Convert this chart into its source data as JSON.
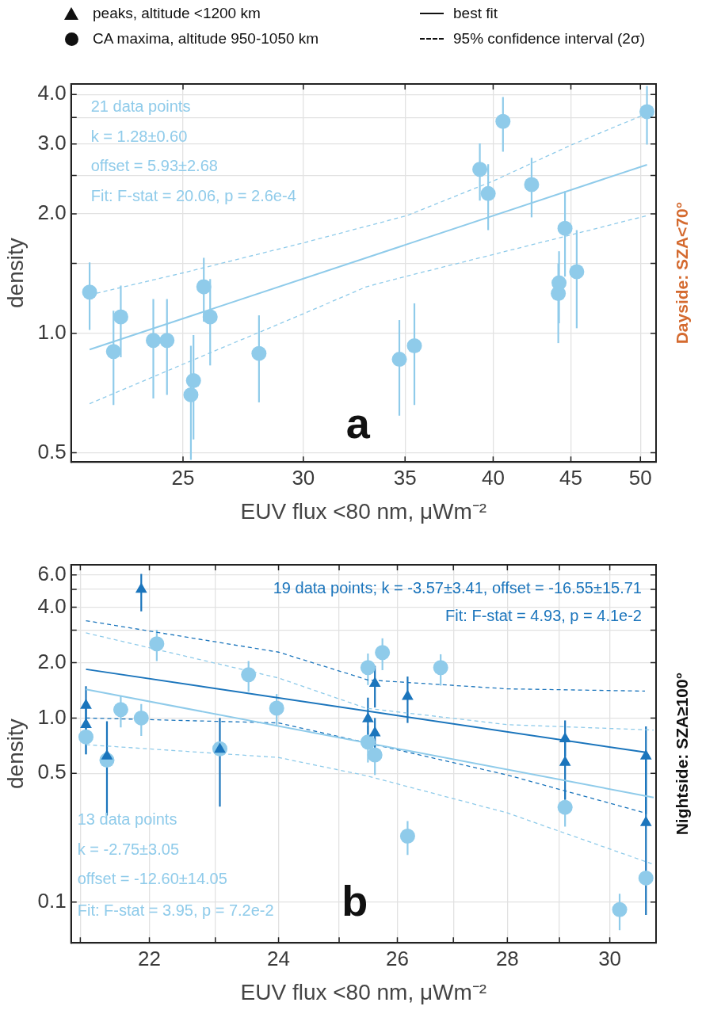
{
  "chart_data": [
    {
      "type": "other",
      "annotations": [
        "peaks, altitude <1200 km",
        "CA maxima, altitude 950-1050 km",
        "best fit",
        "95% confidence interval (2σ)"
      ]
    },
    {
      "type": "scatter",
      "log": "xy",
      "grid": true,
      "xlabel": "EUV flux <80 nm, μWm⁻²",
      "ylabel": "density",
      "y2label": "Dayside: SZA<70°",
      "xlim": [
        21.1,
        51.2
      ],
      "ylim": [
        0.474,
        4.25
      ],
      "xticks": [
        25,
        30,
        35,
        40,
        45,
        50
      ],
      "yticks": [
        {
          "value": 0.5,
          "label": "0.5"
        },
        {
          "value": 1,
          "label": "1.0"
        },
        {
          "value": 1.5,
          "label": null
        },
        {
          "value": 2,
          "label": "2.0"
        },
        {
          "value": 2.5,
          "label": null
        },
        {
          "value": 3,
          "label": "3.0"
        },
        {
          "value": 3.5,
          "label": null
        },
        {
          "value": 4,
          "label": "4.0"
        }
      ],
      "annotations": [
        "21 data points",
        "k = 1.28±0.60",
        "offset = 5.93±2.68",
        "Fit: F-stat = 20.06, p = 2.6e-4",
        "a"
      ],
      "series": [
        {
          "type": "scatter",
          "marker": "circle",
          "color": "#8fcbea",
          "x": [
            21.7,
            22.5,
            22.75,
            23.9,
            24.4,
            25.3,
            25.4,
            25.8,
            26.05,
            28.05,
            34.7,
            35.5,
            39.2,
            39.7,
            40.6,
            42.4,
            44.15,
            44.2,
            44.6,
            45.4,
            50.5
          ],
          "values": [
            1.27,
            0.9,
            1.1,
            0.96,
            0.96,
            0.7,
            0.76,
            1.31,
            1.1,
            0.89,
            0.86,
            0.93,
            2.59,
            2.25,
            3.42,
            2.37,
            1.26,
            1.34,
            1.84,
            1.43,
            3.62
          ],
          "errors": [
            [
              1.02,
              1.51
            ],
            [
              0.66,
              1.14
            ],
            [
              0.87,
              1.32
            ],
            [
              0.685,
              1.22
            ],
            [
              0.7,
              1.22
            ],
            [
              0.48,
              0.93
            ],
            [
              0.54,
              0.99
            ],
            [
              1.07,
              1.55
            ],
            [
              0.83,
              1.37
            ],
            [
              0.67,
              1.11
            ],
            [
              0.62,
              1.08
            ],
            [
              0.66,
              1.19
            ],
            [
              2.16,
              3.01
            ],
            [
              1.82,
              2.67
            ],
            [
              2.87,
              3.94
            ],
            [
              1.96,
              2.77
            ],
            [
              0.945,
              1.5
            ],
            [
              1.06,
              1.61
            ],
            [
              1.39,
              2.28
            ],
            [
              1.03,
              1.82
            ],
            [
              2.99,
              4.2
            ]
          ]
        },
        {
          "type": "line",
          "marker": "none",
          "line_style": "solid",
          "color": "#8fcbea",
          "x": [
            21.7,
            50.5
          ],
          "values": [
            0.91,
            2.66
          ]
        },
        {
          "type": "line",
          "marker": "none",
          "line_style": "dashed",
          "color": "#8fcbea",
          "x": [
            21.7,
            25,
            30,
            35.1,
            40,
            45,
            50.5
          ],
          "values": [
            1.25,
            1.42,
            1.69,
            1.98,
            2.42,
            2.98,
            3.58
          ]
        },
        {
          "type": "line",
          "marker": "none",
          "line_style": "dashed",
          "color": "#8fcbea",
          "x": [
            21.7,
            25,
            30,
            33,
            35,
            40,
            45,
            50.5
          ],
          "values": [
            0.665,
            0.836,
            1.12,
            1.31,
            1.39,
            1.58,
            1.77,
            1.98
          ]
        }
      ]
    },
    {
      "type": "scatter",
      "log": "xy",
      "grid": true,
      "xlabel": "EUV flux <80 nm, μWm⁻²",
      "ylabel": "density",
      "y2label": "Nightside: SZA≥100°",
      "xlim": [
        20.87,
        30.95
      ],
      "ylim": [
        0.06,
        6.8
      ],
      "xticks": [
        {
          "value": 21,
          "label": null
        },
        22,
        {
          "value": 23,
          "label": null
        },
        24,
        {
          "value": 25,
          "label": null
        },
        26,
        {
          "value": 27,
          "label": null
        },
        28,
        {
          "value": 29,
          "label": null
        },
        30
      ],
      "yticks": [
        {
          "value": 0.1,
          "label": "0.1"
        },
        {
          "value": 0.5,
          "label": "0.5"
        },
        {
          "value": 1,
          "label": "1.0"
        },
        {
          "value": 2,
          "label": "2.0"
        },
        {
          "value": 3,
          "label": null
        },
        {
          "value": 4,
          "label": "4.0"
        },
        {
          "value": 5,
          "label": null
        },
        {
          "value": 6,
          "label": "6.0"
        }
      ],
      "annotations": [
        "19 data points; k = -3.57±3.41, offset = -16.55±15.71",
        "Fit: F-stat = 4.93, p = 4.1e-2",
        "13 data points",
        "k = -2.75±3.05",
        "offset = -12.60±14.05",
        "Fit: F-stat = 3.95, p = 7.2e-2",
        "b"
      ],
      "series": [
        {
          "type": "scatter",
          "marker": "circle",
          "color": "#8fcbea",
          "x": [
            21.08,
            21.38,
            21.58,
            21.88,
            22.11,
            23.07,
            23.52,
            23.97,
            25.49,
            25.49,
            25.61,
            25.74,
            26.18,
            26.77,
            29.11,
            30.2,
            30.74
          ],
          "values": [
            0.79,
            0.59,
            1.11,
            1.0,
            2.53,
            0.68,
            1.72,
            1.13,
            1.88,
            0.74,
            0.63,
            2.27,
            0.228,
            1.88,
            0.327,
            0.091,
            0.135
          ],
          "errors": [
            [
              0.635,
              0.98
            ],
            null,
            [
              0.89,
              1.32
            ],
            [
              0.8,
              1.19
            ],
            [
              2.04,
              3.02
            ],
            null,
            [
              1.39,
              2.04
            ],
            [
              0.915,
              1.35
            ],
            [
              1.51,
              2.24
            ],
            [
              0.573,
              0.91
            ],
            [
              0.49,
              0.78
            ],
            [
              1.82,
              2.71
            ],
            [
              0.18,
              0.275
            ],
            [
              1.5,
              2.22
            ],
            [
              0.257,
              0.41
            ],
            [
              0.0703,
              0.111
            ],
            null
          ]
        },
        {
          "type": "scatter",
          "marker": "triangle",
          "color": "#1b75bc",
          "x": [
            21.08,
            21.08,
            21.38,
            21.88,
            23.07,
            25.49,
            25.61,
            25.61,
            26.18,
            29.11,
            29.11,
            30.74,
            30.74
          ],
          "values": [
            1.17,
            0.92,
            0.62,
            5.0,
            0.675,
            0.99,
            1.54,
            0.83,
            1.31,
            0.77,
            0.573,
            0.62,
            0.27
          ],
          "errors": [
            [
              0.95,
              1.49
            ],
            [
              0.635,
              1.15
            ],
            [
              0.295,
              0.96
            ],
            [
              3.8,
              6.07
            ],
            [
              0.33,
              1.0
            ],
            [
              0.69,
              1.29
            ],
            [
              1.14,
              1.92
            ],
            [
              0.59,
              1.0
            ],
            [
              0.94,
              1.68
            ],
            [
              0.62,
              0.97
            ],
            [
              0.36,
              0.75
            ],
            [
              0.3,
              0.9
            ],
            [
              0.085,
              0.6
            ]
          ]
        },
        {
          "type": "line",
          "marker": "none",
          "line_style": "solid",
          "color": "#8fcbea",
          "x": [
            21.08,
            30.9
          ],
          "values": [
            1.43,
            0.37
          ]
        },
        {
          "type": "line",
          "marker": "none",
          "line_style": "solid",
          "color": "#1b75bc",
          "x": [
            21.08,
            30.74
          ],
          "values": [
            1.84,
            0.65
          ]
        },
        {
          "type": "line",
          "marker": "none",
          "line_style": "dashed",
          "color": "#1b75bc",
          "x": [
            21.08,
            24,
            25.49,
            28,
            30.72
          ],
          "values": [
            3.38,
            2.28,
            1.61,
            1.44,
            1.4
          ]
        },
        {
          "type": "line",
          "marker": "none",
          "line_style": "dashed",
          "color": "#1b75bc",
          "x": [
            21.08,
            24,
            25.61,
            28,
            30.72
          ],
          "values": [
            1.0,
            0.94,
            0.716,
            0.49,
            0.305
          ]
        },
        {
          "type": "line",
          "marker": "none",
          "line_style": "dashed",
          "color": "#8fcbea",
          "x": [
            21.08,
            24,
            25.46,
            28,
            30.9
          ],
          "values": [
            2.9,
            1.65,
            1.13,
            0.92,
            0.86
          ]
        },
        {
          "type": "line",
          "marker": "none",
          "line_style": "dashed",
          "color": "#8fcbea",
          "x": [
            21.08,
            24,
            25.46,
            28,
            30.9
          ],
          "values": [
            0.716,
            0.61,
            0.486,
            0.305,
            0.16
          ]
        }
      ]
    }
  ]
}
